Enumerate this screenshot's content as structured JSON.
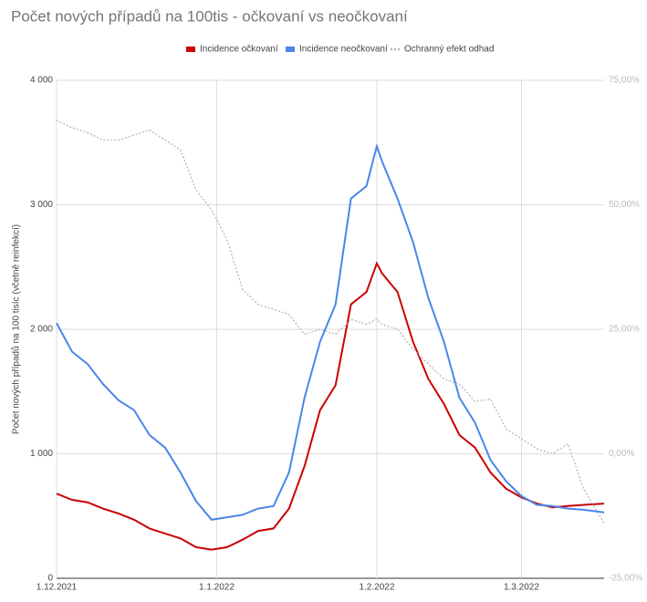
{
  "chart_data": {
    "type": "line",
    "title": "Počet nových případů na 100tis - očkovaní vs neočkovaní",
    "y_label": "Počet nových případů na 100 tisíc (včetně reinfekcí)",
    "x": [
      "2021-12-01",
      "2021-12-04",
      "2021-12-07",
      "2021-12-10",
      "2021-12-13",
      "2021-12-16",
      "2021-12-19",
      "2021-12-22",
      "2021-12-25",
      "2021-12-28",
      "2021-12-31",
      "2022-01-03",
      "2022-01-06",
      "2022-01-09",
      "2022-01-12",
      "2022-01-15",
      "2022-01-18",
      "2022-01-21",
      "2022-01-24",
      "2022-01-27",
      "2022-01-30",
      "2022-02-01",
      "2022-02-02",
      "2022-02-05",
      "2022-02-08",
      "2022-02-11",
      "2022-02-14",
      "2022-02-17",
      "2022-02-20",
      "2022-02-23",
      "2022-02-26",
      "2022-03-01",
      "2022-03-04",
      "2022-03-07",
      "2022-03-10",
      "2022-03-13",
      "2022-03-17"
    ],
    "series": [
      {
        "name": "Incidence očkovaní",
        "color": "#cc0000",
        "values": [
          680,
          630,
          610,
          560,
          520,
          470,
          400,
          360,
          320,
          250,
          230,
          250,
          310,
          380,
          400,
          560,
          900,
          1350,
          1550,
          2200,
          2300,
          2530,
          2450,
          2300,
          1900,
          1600,
          1400,
          1150,
          1050,
          850,
          720,
          650,
          600,
          570,
          580,
          590,
          600
        ]
      },
      {
        "name": "Incidence neočkovaní",
        "color": "#4a86e8",
        "values": [
          2050,
          1820,
          1720,
          1560,
          1430,
          1350,
          1150,
          1050,
          850,
          620,
          470,
          490,
          510,
          560,
          580,
          850,
          1450,
          1900,
          2200,
          3050,
          3150,
          3470,
          3350,
          3050,
          2700,
          2250,
          1900,
          1450,
          1250,
          950,
          780,
          660,
          590,
          580,
          560,
          550,
          530
        ]
      },
      {
        "name": "Ochranný efekt odhad",
        "color": "#b7b7b7",
        "axis": "y2",
        "values": [
          67,
          65.5,
          64.5,
          63,
          63,
          64,
          65,
          63,
          61,
          53,
          49,
          43,
          33,
          30,
          29,
          28,
          24,
          25,
          24,
          27,
          26,
          27,
          26,
          25,
          21,
          18,
          15,
          14,
          10.5,
          11,
          5,
          3,
          1,
          0,
          2,
          -7,
          -14
        ]
      }
    ],
    "xlim": [
      "2021-12-01",
      "2022-03-17"
    ],
    "xticks": [
      {
        "value": "2021-12-01",
        "label": "1.12.2021"
      },
      {
        "value": "2022-01-01",
        "label": "1.1.2022"
      },
      {
        "value": "2022-02-01",
        "label": "1.2.2022"
      },
      {
        "value": "2022-03-01",
        "label": "1.3.2022"
      }
    ],
    "ylim": [
      0,
      4000
    ],
    "yticks": [
      0,
      {
        "value": 1000,
        "label": "1 000"
      },
      {
        "value": 2000,
        "label": "2 000"
      },
      {
        "value": 3000,
        "label": "3 000"
      },
      {
        "value": 4000,
        "label": "4 000"
      }
    ],
    "y2lim": [
      -25,
      75
    ],
    "y2ticks": [
      {
        "value": -25,
        "label": "-25,00%"
      },
      {
        "value": 0,
        "label": "0,00%"
      },
      {
        "value": 25,
        "label": "25,00%"
      },
      {
        "value": 50,
        "label": "50,00%"
      },
      {
        "value": 75,
        "label": "75,00%"
      }
    ],
    "grid": true
  }
}
